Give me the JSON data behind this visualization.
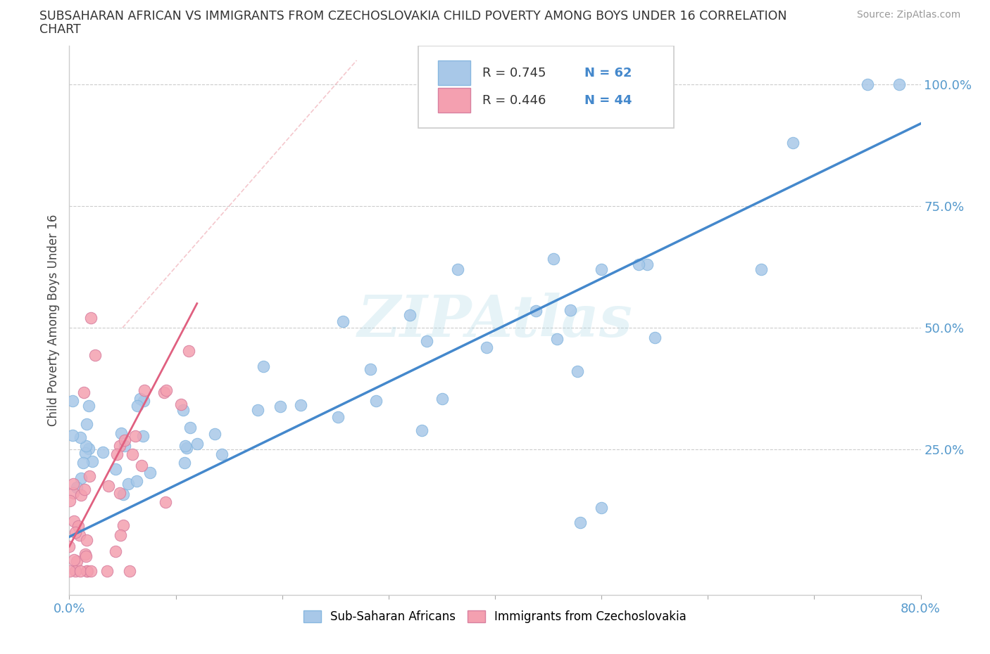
{
  "title_line1": "SUBSAHARAN AFRICAN VS IMMIGRANTS FROM CZECHOSLOVAKIA CHILD POVERTY AMONG BOYS UNDER 16 CORRELATION",
  "title_line2": "CHART",
  "source_text": "Source: ZipAtlas.com",
  "ylabel": "Child Poverty Among Boys Under 16",
  "xmin": 0.0,
  "xmax": 0.8,
  "ymin": -0.05,
  "ymax": 1.08,
  "watermark": "ZIPAtlas",
  "blue_R": 0.745,
  "blue_N": 62,
  "pink_R": 0.446,
  "pink_N": 44,
  "blue_color": "#a8c8e8",
  "pink_color": "#f4a0b0",
  "blue_line_color": "#4488cc",
  "pink_line_color": "#e06080",
  "ref_line_color": "#f0b0b8",
  "legend_label_blue": "Sub-Saharan Africans",
  "legend_label_pink": "Immigrants from Czechoslovakia",
  "figsize": [
    14.06,
    9.3
  ],
  "dpi": 100
}
